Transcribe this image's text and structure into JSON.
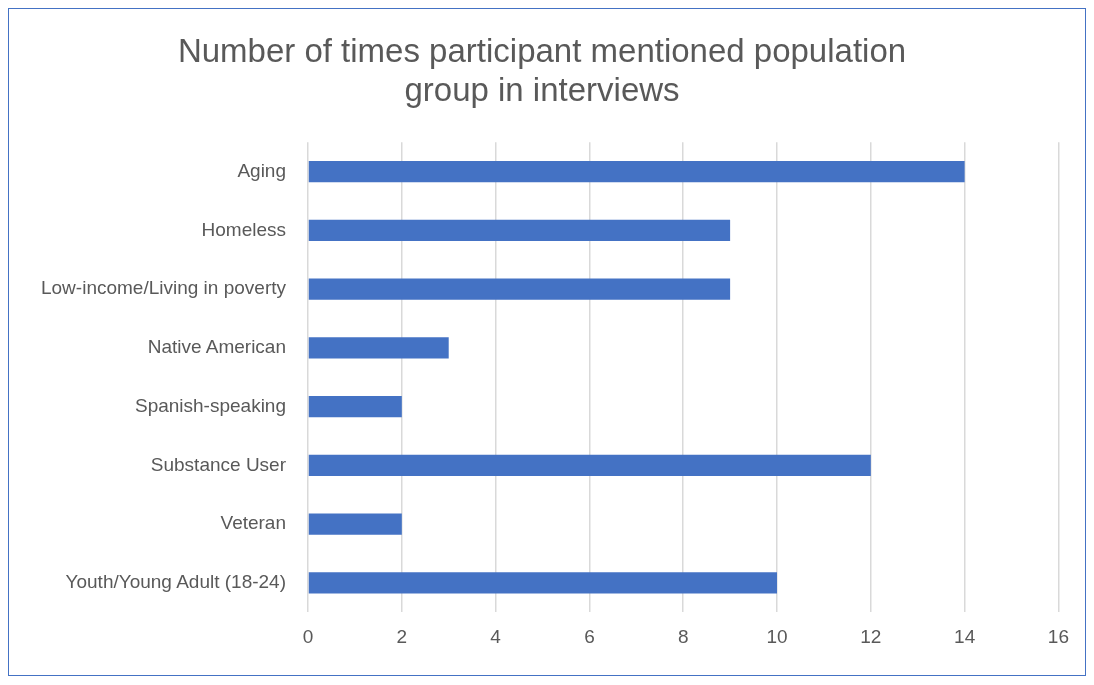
{
  "chart_data": {
    "type": "bar",
    "orientation": "horizontal",
    "title": "Number of times participant mentioned population group in interviews",
    "categories": [
      "Aging",
      "Homeless",
      "Low-income/Living in poverty",
      "Native American",
      "Spanish-speaking",
      "Substance User",
      "Veteran",
      "Youth/Young Adult (18-24)"
    ],
    "values": [
      14,
      9,
      9,
      3,
      2,
      12,
      2,
      10
    ],
    "color": "#4472c4",
    "xlim": [
      0,
      16
    ],
    "xticks": [
      0,
      2,
      4,
      6,
      8,
      10,
      12,
      14,
      16
    ],
    "grid": "x",
    "legend": false
  }
}
